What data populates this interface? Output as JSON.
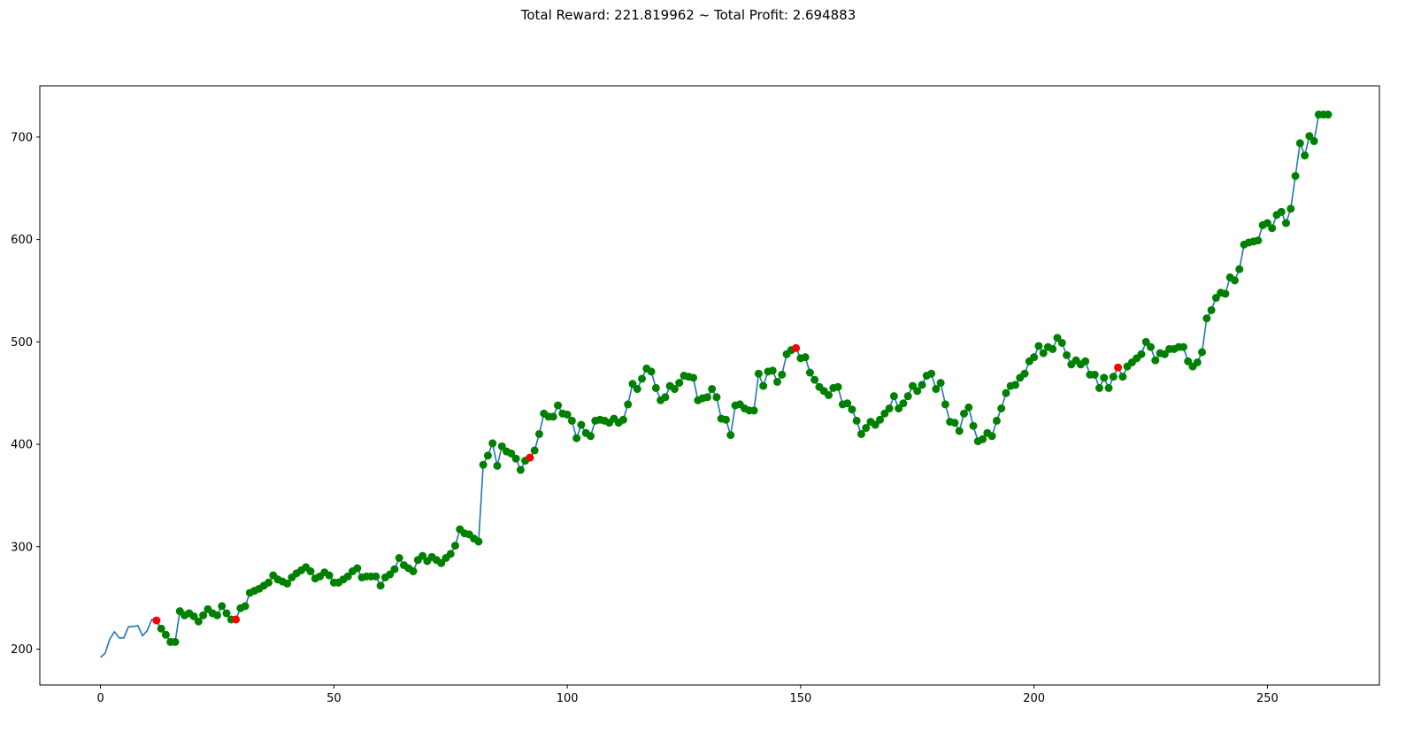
{
  "chart_data": {
    "type": "line",
    "title": "Total Reward: 221.819962 ~ Total Profit: 2.694883",
    "xlabel": "",
    "ylabel": "",
    "xlim": [
      -13,
      274
    ],
    "ylim": [
      165,
      750
    ],
    "xticks": [
      0,
      50,
      100,
      150,
      200,
      250
    ],
    "yticks": [
      200,
      300,
      400,
      500,
      600,
      700
    ],
    "grid": false,
    "line_color": "#1f77b4",
    "long_marker_color": "#008000",
    "short_marker_color": "#ff0000",
    "x_start": 0,
    "y": [
      192,
      196,
      210,
      217,
      211,
      211,
      222,
      222,
      223,
      213,
      218,
      229,
      228,
      220,
      214,
      207,
      207,
      237,
      233,
      235,
      232,
      227,
      233,
      239,
      235,
      233,
      242,
      235,
      229,
      229,
      240,
      242,
      255,
      257,
      259,
      262,
      265,
      272,
      268,
      266,
      264,
      270,
      274,
      277,
      280,
      276,
      269,
      271,
      275,
      272,
      265,
      265,
      268,
      271,
      276,
      279,
      270,
      271,
      271,
      271,
      262,
      270,
      273,
      278,
      289,
      282,
      279,
      276,
      287,
      291,
      286,
      290,
      287,
      284,
      289,
      293,
      301,
      317,
      313,
      312,
      308,
      305,
      380,
      389,
      401,
      379,
      398,
      393,
      391,
      386,
      375,
      384,
      387,
      394,
      410,
      430,
      427,
      427,
      438,
      430,
      429,
      423,
      406,
      419,
      411,
      408,
      423,
      424,
      423,
      421,
      425,
      421,
      424,
      439,
      459,
      454,
      464,
      474,
      471,
      455,
      443,
      446,
      457,
      454,
      460,
      467,
      466,
      465,
      443,
      445,
      446,
      454,
      446,
      425,
      424,
      409,
      438,
      439,
      435,
      433,
      433,
      469,
      457,
      471,
      472,
      461,
      468,
      488,
      492,
      494,
      484,
      485,
      470,
      463,
      456,
      452,
      448,
      455,
      456,
      439,
      440,
      434,
      423,
      410,
      416,
      422,
      419,
      424,
      430,
      435,
      447,
      435,
      440,
      447,
      457,
      452,
      458,
      467,
      469,
      454,
      460,
      439,
      422,
      421,
      413,
      430,
      436,
      418,
      403,
      405,
      411,
      408,
      423,
      435,
      450,
      457,
      458,
      465,
      469,
      481,
      485,
      496,
      489,
      495,
      493,
      504,
      499,
      487,
      478,
      482,
      478,
      481,
      468,
      468,
      455,
      465,
      455,
      466,
      475,
      466,
      476,
      480,
      484,
      488,
      500,
      495,
      482,
      489,
      488,
      493,
      493,
      495,
      495,
      481,
      476,
      480,
      490,
      523,
      531,
      543,
      548,
      547,
      563,
      560,
      571,
      595,
      597,
      598,
      599,
      614,
      616,
      611,
      624,
      627,
      616,
      630,
      662,
      694,
      682,
      701,
      696,
      722,
      722,
      722
    ],
    "markers": "nnnnnnnnnnnnsllllllllllllllllsllllllllllllllllllllllllllllllllllllllllllllllllllllllllllllllsllllllllllllllllllllllllllllllllllllllllllllllllllllllllsllllllllllllllllllllllllllllllllllllllllllllllllllllllllllllllllllllsllllllllllllllllllllllllllllllllllllllllllllllllllllllllllllll"
  }
}
